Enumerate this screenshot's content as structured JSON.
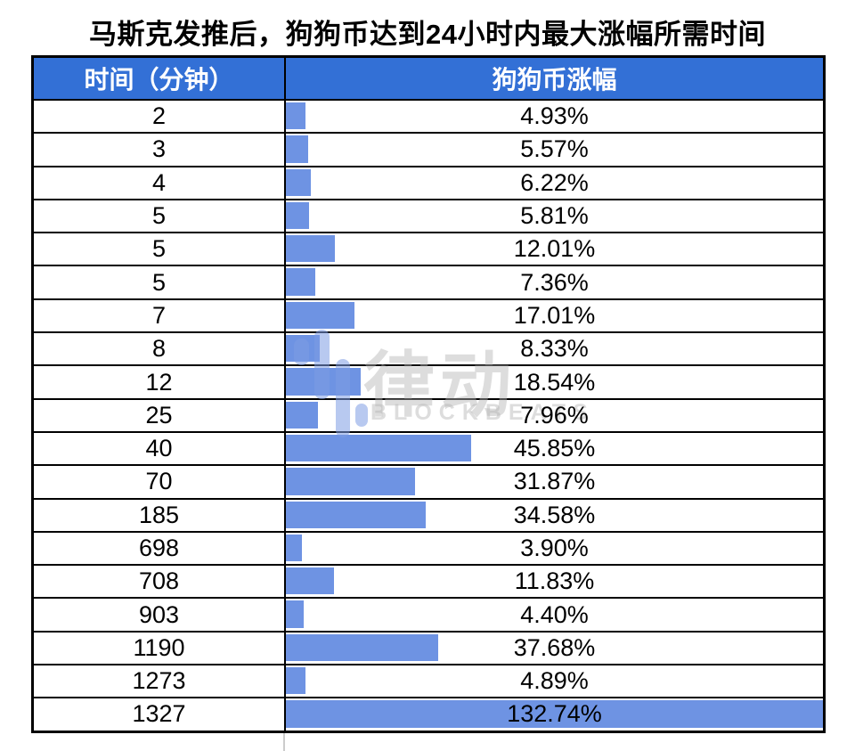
{
  "title": "马斯克发推后，狗狗币达到24小时内最大涨幅所需时间",
  "watermark": {
    "cn": "律动",
    "en": "BLOCKBEATS"
  },
  "colors": {
    "header_bg": "#3370d6",
    "bar": "#6e93e3",
    "border": "#000000",
    "watermark": "#d8d8d8"
  },
  "chart_data": {
    "type": "bar",
    "orientation": "horizontal",
    "title": "马斯克发推后，狗狗币达到24小时内最大涨幅所需时间",
    "columns": [
      "时间（分钟）",
      "狗狗币涨幅"
    ],
    "categories": [
      "2",
      "3",
      "4",
      "5",
      "5",
      "5",
      "7",
      "8",
      "12",
      "25",
      "40",
      "70",
      "185",
      "698",
      "708",
      "903",
      "1190",
      "1273",
      "1327"
    ],
    "values": [
      4.93,
      5.57,
      6.22,
      5.81,
      12.01,
      7.36,
      17.01,
      8.33,
      18.54,
      7.96,
      45.85,
      31.87,
      34.58,
      3.9,
      11.83,
      4.4,
      37.68,
      4.89,
      132.74
    ],
    "value_labels": [
      "4.93%",
      "5.57%",
      "6.22%",
      "5.81%",
      "12.01%",
      "7.36%",
      "17.01%",
      "8.33%",
      "18.54%",
      "7.96%",
      "45.85%",
      "31.87%",
      "34.58%",
      "3.90%",
      "11.83%",
      "4.40%",
      "37.68%",
      "4.89%",
      "132.74%"
    ],
    "max_value": 132.74,
    "xlabel": "狗狗币涨幅",
    "ylabel": "时间（分钟）",
    "grid": false,
    "legend": "none"
  }
}
